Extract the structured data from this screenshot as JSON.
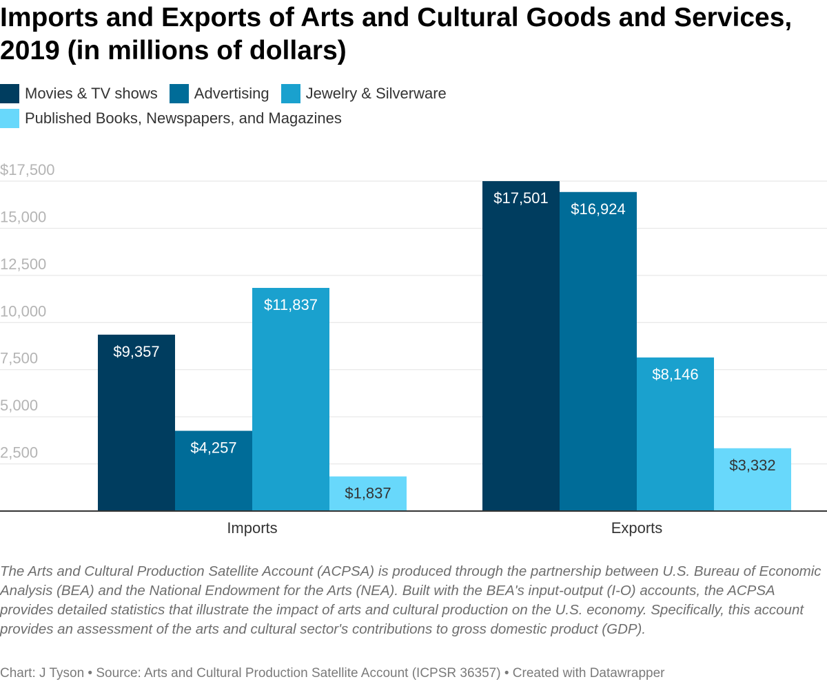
{
  "chart_data": {
    "type": "bar",
    "title": "Imports and Exports of Arts and Cultural Goods and Services, 2019 (in millions of dollars)",
    "categories": [
      "Imports",
      "Exports"
    ],
    "series": [
      {
        "name": "Movies & TV shows",
        "color": "#003d5f",
        "values": [
          9357,
          17501
        ],
        "labels": [
          "$9,357",
          "$17,501"
        ]
      },
      {
        "name": "Advertising",
        "color": "#006c98",
        "values": [
          4257,
          16924
        ],
        "labels": [
          "$4,257",
          "$16,924"
        ]
      },
      {
        "name": "Jewelry & Silverware",
        "color": "#1aa1ce",
        "values": [
          11837,
          8146
        ],
        "labels": [
          "$11,837",
          "$8,146"
        ]
      },
      {
        "name": "Published Books, Newspapers, and Magazines",
        "color": "#68d8fb",
        "values": [
          1837,
          3332
        ],
        "labels": [
          "$1,837",
          "$3,332"
        ]
      }
    ],
    "yticks": [
      "$17,500",
      "15,000",
      "12,500",
      "10,000",
      "7,500",
      "5,000",
      "2,500"
    ],
    "ytick_values": [
      17500,
      15000,
      12500,
      10000,
      7500,
      5000,
      2500
    ],
    "ylim": [
      0,
      17500
    ],
    "grid": true,
    "legend_position": "top-left",
    "label_colors": {
      "dark": "#ffffff",
      "light": "#333333"
    }
  },
  "notes": "The Arts and Cultural Production Satellite Account (ACPSA) is produced through the partnership between U.S. Bureau of Economic Analysis (BEA) and the National Endowment for the Arts (NEA). Built with the BEA's input-output (I-O) accounts, the ACPSA provides detailed statistics that illustrate the impact of arts and cultural production on the U.S. economy. Specifically, this account provides an assessment of the arts and cultural sector's contributions to gross domestic product (GDP).",
  "footer": "Chart: J Tyson • Source: Arts and Cultural Production Satellite Account (ICPSR 36357) • Created with Datawrapper",
  "colors": {
    "gridline": "#e2e2e2",
    "baseline": "#333333",
    "tick_text": "#b4b4b4",
    "category_text": "#333333"
  }
}
